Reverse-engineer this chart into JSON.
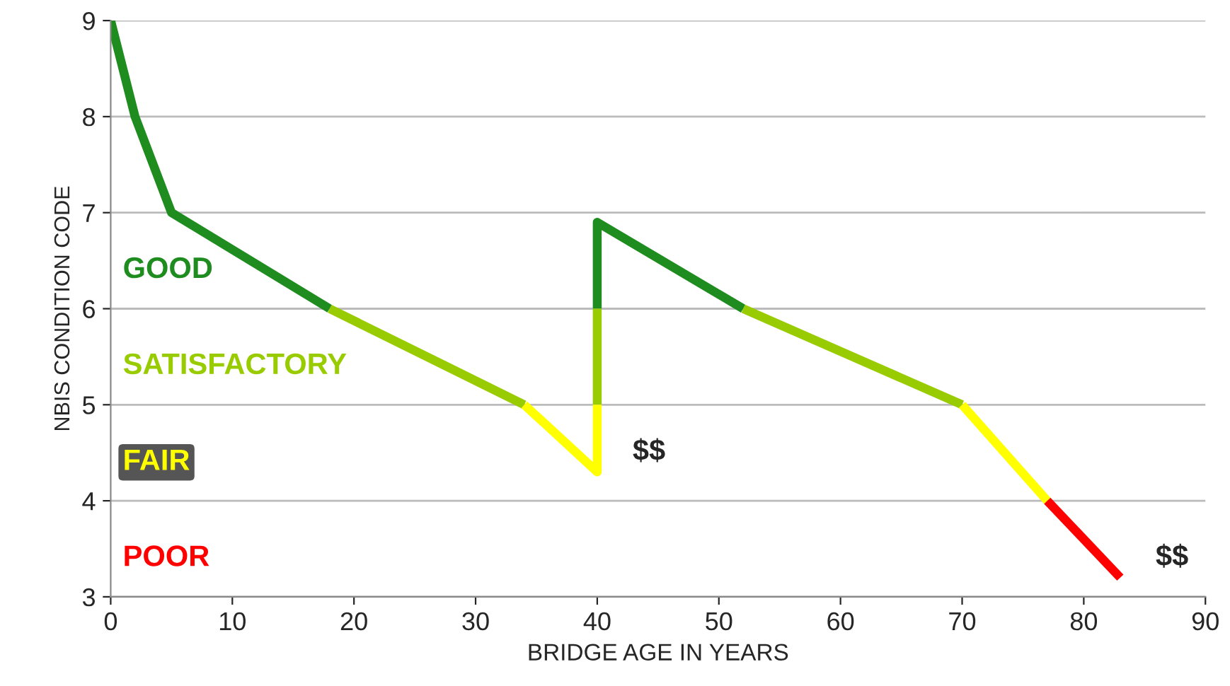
{
  "chart_data": {
    "type": "line",
    "xlabel": "BRIDGE AGE IN YEARS",
    "ylabel": "NBIS CONDITION CODE",
    "xlim": [
      0,
      90
    ],
    "xticks": [
      0,
      10,
      20,
      30,
      40,
      50,
      60,
      70,
      80,
      90
    ],
    "ylim": [
      3,
      9
    ],
    "yticks": [
      3,
      4,
      5,
      6,
      7,
      8,
      9
    ],
    "grid": "y",
    "legend": false,
    "marker": "none",
    "line_style": "solid",
    "series": [
      {
        "name": "GOOD",
        "color": "#1e8c1e",
        "x": [
          0,
          2,
          5,
          18,
          null,
          40,
          40,
          52
        ],
        "values": [
          9,
          8,
          7,
          6,
          null,
          6,
          6.9,
          6
        ]
      },
      {
        "name": "SATISFACTORY",
        "color": "#99cc00",
        "x": [
          18,
          34,
          null,
          40,
          40,
          null,
          52,
          70
        ],
        "values": [
          6,
          5,
          null,
          5,
          6,
          null,
          6,
          5
        ]
      },
      {
        "name": "FAIR",
        "color": "#ffff00",
        "x": [
          34,
          40,
          40,
          null,
          70,
          77
        ],
        "values": [
          5,
          4.3,
          5,
          null,
          5,
          4
        ]
      },
      {
        "name": "POOR",
        "color": "#ff0000",
        "x": [
          77,
          83
        ],
        "values": [
          4,
          3.2
        ]
      }
    ],
    "annotations": [
      {
        "text": "$$",
        "x": 40,
        "y": 4.3
      },
      {
        "text": "$$",
        "x": 83,
        "y": 3.2
      }
    ]
  }
}
